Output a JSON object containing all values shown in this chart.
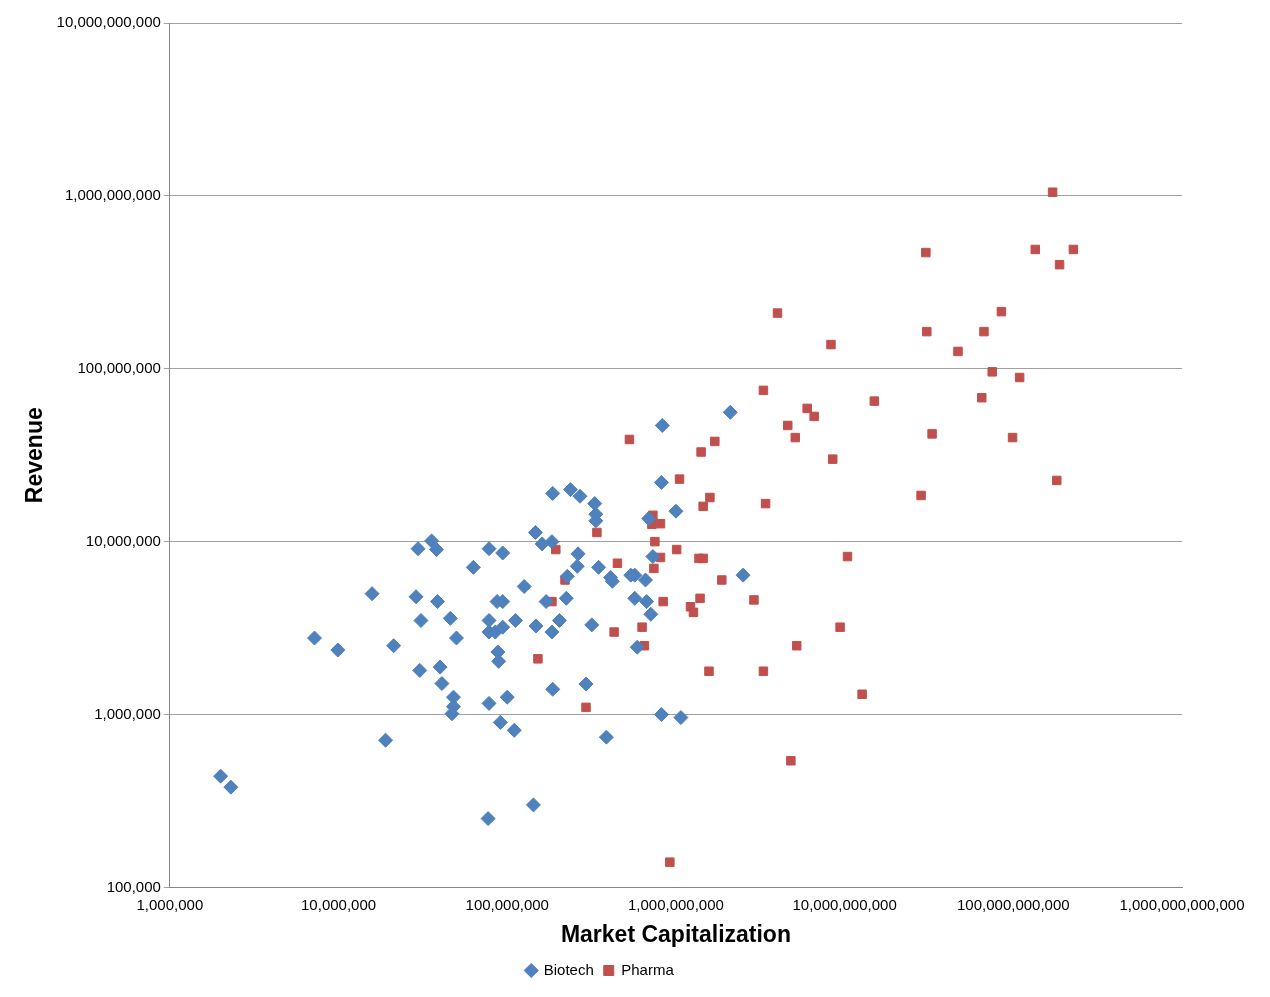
{
  "chart_data": {
    "type": "scatter",
    "xlabel": "Market Capitalization",
    "ylabel": "Revenue",
    "log": "xy",
    "grid": "y",
    "legend": "bottom",
    "xlim": [
      1000000,
      1000000000000
    ],
    "xticks": [
      {
        "value": 1000000,
        "label": "1,000,000"
      },
      {
        "value": 10000000,
        "label": "10,000,000"
      },
      {
        "value": 100000000,
        "label": "100,000,000"
      },
      {
        "value": 1000000000,
        "label": "1,000,000,000"
      },
      {
        "value": 10000000000,
        "label": "10,000,000,000"
      },
      {
        "value": 100000000000,
        "label": "100,000,000,000"
      },
      {
        "value": 1000000000000,
        "label": "1,000,000,000,000"
      }
    ],
    "ylim": [
      100000,
      10000000000
    ],
    "yticks": [
      {
        "value": 100000,
        "label": "100,000"
      },
      {
        "value": 1000000,
        "label": "1,000,000"
      },
      {
        "value": 10000000,
        "label": "10,000,000"
      },
      {
        "value": 100000000,
        "label": "100,000,000"
      },
      {
        "value": 1000000000,
        "label": "1,000,000,000"
      },
      {
        "value": 10000000000,
        "label": "10,000,000,000"
      }
    ],
    "series": [
      {
        "name": "Biotech",
        "color": "#4f81bd",
        "marker": "diamond",
        "x": [
          2000000.0,
          2300000.0,
          7200000.0,
          9900000.0,
          15800000.0,
          19000000.0,
          21200000.0,
          28800000.0,
          29600000.0,
          30800000.0,
          30300000.0,
          35600000.0,
          38100000.0,
          38600000.0,
          40000000.0,
          41000000.0,
          46000000.0,
          48000000.0,
          48000000.0,
          47000000.0,
          50000000.0,
          63000000.0,
          77000000.0,
          78000000.0,
          78000000.0,
          78000000.0,
          78000000.0,
          85000000.0,
          87000000.0,
          88000000.0,
          89000000.0,
          91000000.0,
          94000000.0,
          94000000.0,
          94000000.0,
          100000000.0,
          110000000.0,
          112000000.0,
          126000000.0,
          143000000.0,
          147000000.0,
          148000000.0,
          161000000.0,
          170000000.0,
          184000000.0,
          184000000.0,
          186000000.0,
          186000000.0,
          204000000.0,
          224000000.0,
          227000000.0,
          237000000.0,
          260000000.0,
          263000000.0,
          270000000.0,
          293000000.0,
          317000000.0,
          330000000.0,
          335000000.0,
          335000000.0,
          348000000.0,
          387000000.0,
          410000000.0,
          420000000.0,
          540000000.0,
          570000000.0,
          570000000.0,
          590000000.0,
          660000000.0,
          670000000.0,
          690000000.0,
          710000000.0,
          820000000.0,
          820000000.0,
          830000000.0,
          1000000000.0,
          1070000000.0,
          2100000000.0,
          2500000000.0,
          730000000.0
        ],
        "values": [
          440000.0,
          380000.0,
          2770000.0,
          2360000.0,
          5000000.0,
          710000.0,
          2500000.0,
          4800000.0,
          9100000.0,
          3500000.0,
          1800000.0,
          10100000.0,
          9000000.0,
          4500000.0,
          1880000.0,
          1510000.0,
          3600000.0,
          1260000.0,
          1110000.0,
          1010000.0,
          2770000.0,
          7100000.0,
          250000.0,
          9100000.0,
          1160000.0,
          3000000.0,
          3500000.0,
          3000000.0,
          4500000.0,
          2300000.0,
          2030000.0,
          900000.0,
          8600000.0,
          4500000.0,
          3200000.0,
          1260000.0,
          810000.0,
          3500000.0,
          5500000.0,
          300000.0,
          11300000.0,
          3250000.0,
          9700000.0,
          4500000.0,
          10000000.0,
          3000000.0,
          19000000.0,
          1400000.0,
          3500000.0,
          4700000.0,
          6300000.0,
          20000000.0,
          7200000.0,
          8500000.0,
          18300000.0,
          1500000.0,
          3300000.0,
          16600000.0,
          14400000.0,
          13200000.0,
          7100000.0,
          740000.0,
          6200000.0,
          5900000.0,
          6400000.0,
          6400000.0,
          4700000.0,
          2450000.0,
          6000000.0,
          4500000.0,
          13600000.0,
          3800000.0,
          1000000.0,
          22000000.0,
          47000000.0,
          15000000.0,
          960000.0,
          56000000.0,
          6400000.0,
          8200000.0
        ]
      },
      {
        "name": "Pharma",
        "color": "#c0504d",
        "marker": "square",
        "x": [
          171000000000.0,
          30300000000.0,
          135000000000.0,
          227000000000.0,
          188000000000.0,
          85000000000.0,
          4000000000.0,
          30700000000.0,
          67000000000.0,
          47000000000.0,
          8300000000.0,
          75000000000.0,
          109000000000.0,
          3300000000.0,
          65000000000.0,
          15000000000.0,
          6000000000.0,
          6600000000.0,
          4600000000.0,
          33000000000.0,
          99000000000.0,
          5100000000.0,
          530000000.0,
          1700000000.0,
          1410000000.0,
          8500000000.0,
          1050000000.0,
          181000000000.0,
          28400000000.0,
          1590000000.0,
          3400000000.0,
          1450000000.0,
          730000000.0,
          720000000.0,
          810000000.0,
          340000000.0,
          750000000.0,
          194000000.0,
          1010000000.0,
          10400000000.0,
          1370000000.0,
          1450000000.0,
          810000000.0,
          450000000.0,
          740000000.0,
          220000000.0,
          1870000000.0,
          184000000.0,
          840000000.0,
          1390000000.0,
          2900000000.0,
          1220000000.0,
          1270000000.0,
          430000000.0,
          630000000.0,
          9400000000.0,
          650000000.0,
          5200000000.0,
          152000000.0,
          1570000000.0,
          3300000000.0,
          12700000000.0,
          293000000.0,
          4800000000.0,
          920000000.0
        ],
        "values": [
          1050000000.0,
          470000000.0,
          490000000.0,
          490000000.0,
          400000000.0,
          214000000.0,
          210000000.0,
          164000000.0,
          164000000.0,
          126000000.0,
          138000000.0,
          96000000.0,
          89000000.0,
          75000000.0,
          68000000.0,
          65000000.0,
          59000000.0,
          53000000.0,
          47000000.0,
          42000000.0,
          40000000.0,
          40000000.0,
          39000000.0,
          38000000.0,
          33000000.0,
          30000000.0,
          23000000.0,
          22600000.0,
          18500000.0,
          18000000.0,
          16600000.0,
          16000000.0,
          14200000.0,
          12600000.0,
          12700000.0,
          11300000.0,
          10000000.0,
          9000000.0,
          9000000.0,
          8200000.0,
          8000000.0,
          8000000.0,
          8100000.0,
          7500000.0,
          7000000.0,
          6000000.0,
          6000000.0,
          4500000.0,
          4500000.0,
          4700000.0,
          4600000.0,
          4200000.0,
          3900000.0,
          3000000.0,
          3200000.0,
          3200000.0,
          2500000.0,
          2500000.0,
          2100000.0,
          1780000.0,
          1780000.0,
          1310000.0,
          1100000.0,
          540000.0,
          140000.0
        ]
      }
    ]
  }
}
